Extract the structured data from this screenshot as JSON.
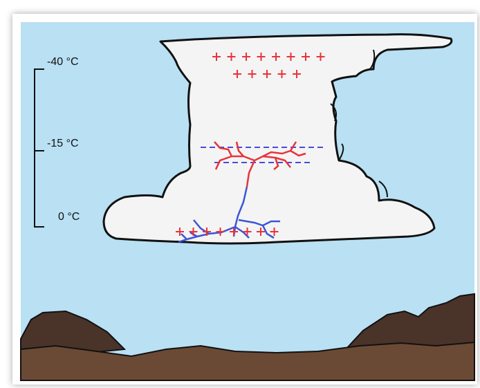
{
  "scale": {
    "labels": [
      "-40 °C",
      "-15 °C",
      "0 °C"
    ]
  }
}
